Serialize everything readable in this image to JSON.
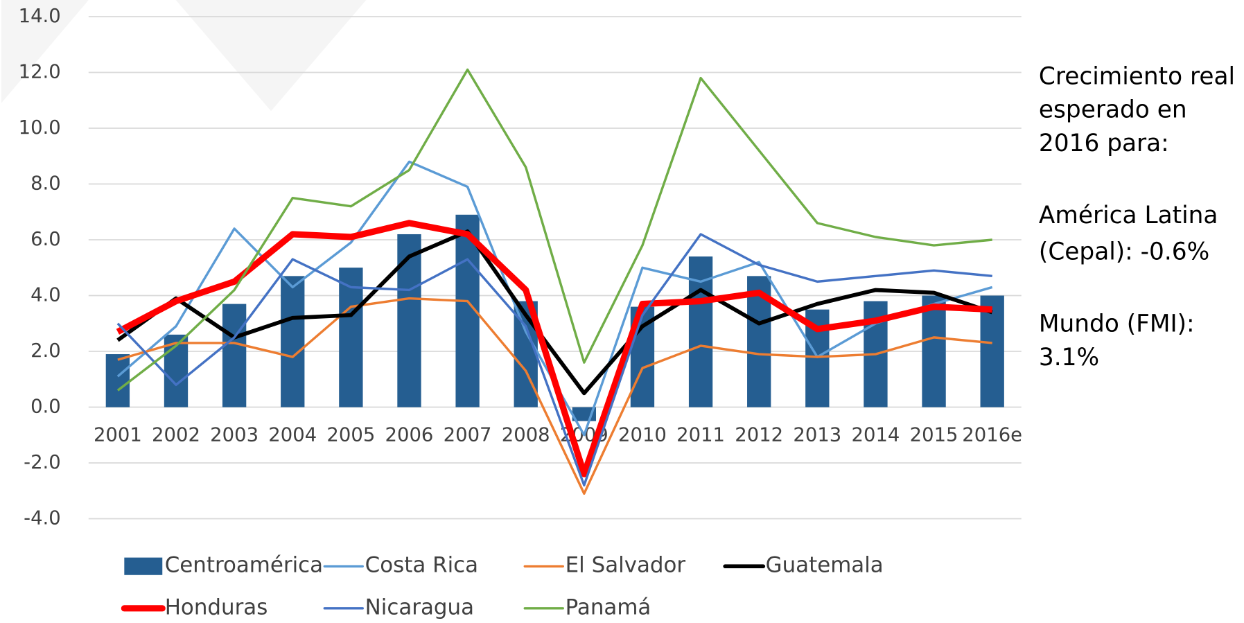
{
  "chart_data": {
    "type": "bar_line",
    "categories": [
      "2001",
      "2002",
      "2003",
      "2004",
      "2005",
      "2006",
      "2007",
      "2008",
      "2009",
      "2010",
      "2011",
      "2012",
      "2013",
      "2014",
      "2015",
      "2016e"
    ],
    "series": [
      {
        "name": "Centroamérica",
        "type": "bar",
        "color": "#255e91",
        "values": [
          1.9,
          2.6,
          3.7,
          4.7,
          5.0,
          6.2,
          6.9,
          3.8,
          -0.5,
          3.6,
          5.4,
          4.7,
          3.5,
          3.8,
          4.0,
          4.0
        ]
      },
      {
        "name": "Costa Rica",
        "type": "line",
        "color": "#5b9bd5",
        "width": 3,
        "values": [
          1.1,
          2.9,
          6.4,
          4.3,
          5.9,
          8.8,
          7.9,
          2.7,
          -1.0,
          5.0,
          4.5,
          5.2,
          1.8,
          3.0,
          3.7,
          4.3
        ]
      },
      {
        "name": "El Salvador",
        "type": "line",
        "color": "#ed7d31",
        "width": 3,
        "values": [
          1.7,
          2.3,
          2.3,
          1.8,
          3.6,
          3.9,
          3.8,
          1.3,
          -3.1,
          1.4,
          2.2,
          1.9,
          1.8,
          1.9,
          2.5,
          2.3
        ]
      },
      {
        "name": "Guatemala",
        "type": "line",
        "color": "#000000",
        "width": 5,
        "values": [
          2.4,
          3.9,
          2.5,
          3.2,
          3.3,
          5.4,
          6.3,
          3.3,
          0.5,
          2.9,
          4.2,
          3.0,
          3.7,
          4.2,
          4.1,
          3.4
        ]
      },
      {
        "name": "Honduras",
        "type": "line",
        "color": "#ff0000",
        "width": 8,
        "values": [
          2.7,
          3.8,
          4.5,
          6.2,
          6.1,
          6.6,
          6.2,
          4.2,
          -2.4,
          3.7,
          3.8,
          4.1,
          2.8,
          3.1,
          3.6,
          3.5
        ]
      },
      {
        "name": "Nicaragua",
        "type": "line",
        "color": "#4472c4",
        "width": 3,
        "values": [
          3.0,
          0.8,
          2.5,
          5.3,
          4.3,
          4.2,
          5.3,
          2.9,
          -2.8,
          3.3,
          6.2,
          5.1,
          4.5,
          4.7,
          4.9,
          4.7
        ]
      },
      {
        "name": "Panamá",
        "type": "line",
        "color": "#70ad47",
        "width": 3,
        "values": [
          0.6,
          2.2,
          4.2,
          7.5,
          7.2,
          8.5,
          12.1,
          8.6,
          1.6,
          5.8,
          11.8,
          9.2,
          6.6,
          6.1,
          5.8,
          6.0
        ]
      }
    ],
    "ylim": [
      -4,
      14
    ],
    "yticks": [
      {
        "value": -4,
        "label": "-4.0"
      },
      {
        "value": -2,
        "label": "-2.0"
      },
      {
        "value": 0,
        "label": "0.0"
      },
      {
        "value": 2,
        "label": "2.0"
      },
      {
        "value": 4,
        "label": "4.0"
      },
      {
        "value": 6,
        "label": "6.0"
      },
      {
        "value": 8,
        "label": "8.0"
      },
      {
        "value": 10,
        "label": "10.0"
      },
      {
        "value": 12,
        "label": "12.0"
      },
      {
        "value": 14,
        "label": "14.0"
      }
    ],
    "grid": true,
    "legend": "bottom",
    "annotation": [
      "Crecimiento real",
      "esperado en",
      "2016 para:",
      "América Latina",
      "(Cepal): -0.6%",
      "Mundo (FMI):",
      "3.1%"
    ]
  }
}
